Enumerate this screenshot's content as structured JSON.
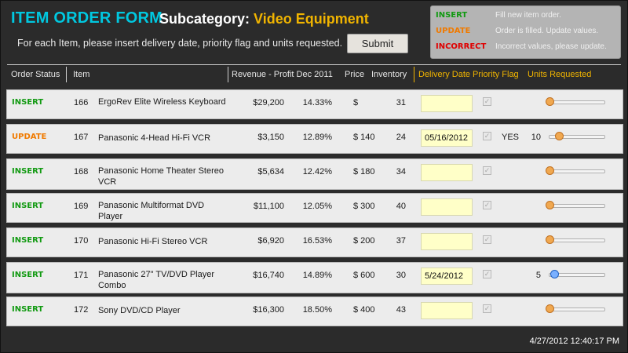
{
  "header": {
    "title": "ITEM ORDER FORM",
    "subcategory_label": "Subcategory:",
    "subcategory_value": "Video Equipment",
    "instructions": "For each Item, please insert delivery date, priority flag and units requested.",
    "submit_label": "Submit"
  },
  "legend": {
    "insert_label": "INSERT",
    "insert_desc": "Fill new item order.",
    "update_label": "UPDATE",
    "update_desc": "Order is filled. Update values.",
    "incorrect_label": "INCORRECT",
    "incorrect_desc": "Incorrect values, please update."
  },
  "columns": {
    "order_status": "Order Status",
    "item": "Item",
    "revenue": "Revenue - Profit Dec 2011",
    "price": "Price",
    "inventory": "Inventory",
    "delivery_date": "Delivery Date",
    "priority_flag": "Priority Flag",
    "units_requested": "Units Requested"
  },
  "rows": [
    {
      "status": "INSERT",
      "id": "166",
      "name": "ErgoRev Elite Wireless Keyboard",
      "revenue": "$29,200",
      "profit": "14.33%",
      "price": "$",
      "inventory": "31",
      "date": "",
      "priority": "",
      "units": ""
    },
    {
      "status": "UPDATE",
      "id": "167",
      "name": "Panasonic 4-Head Hi-Fi VCR",
      "revenue": "$3,150",
      "profit": "12.89%",
      "price": "$ 140",
      "inventory": "24",
      "date": "05/16/2012",
      "priority": "YES",
      "units": "10"
    },
    {
      "status": "INSERT",
      "id": "168",
      "name": "Panasonic Home Theater Stereo VCR",
      "revenue": "$5,634",
      "profit": "12.42%",
      "price": "$ 180",
      "inventory": "34",
      "date": "",
      "priority": "",
      "units": ""
    },
    {
      "status": "INSERT",
      "id": "169",
      "name": "Panasonic Multiformat DVD Player",
      "revenue": "$11,100",
      "profit": "12.05%",
      "price": "$ 300",
      "inventory": "40",
      "date": "",
      "priority": "",
      "units": ""
    },
    {
      "status": "INSERT",
      "id": "170",
      "name": "Panasonic Hi-Fi Stereo VCR",
      "revenue": "$6,920",
      "profit": "16.53%",
      "price": "$ 200",
      "inventory": "37",
      "date": "",
      "priority": "",
      "units": ""
    },
    {
      "status": "INSERT",
      "id": "171",
      "name": "Panasonic 27\" TV/DVD Player Combo",
      "revenue": "$16,740",
      "profit": "14.89%",
      "price": "$ 600",
      "inventory": "30",
      "date": "5/24/2012",
      "priority": "",
      "units": "5"
    },
    {
      "status": "INSERT",
      "id": "172",
      "name": "Sony DVD/CD Player",
      "revenue": "$16,300",
      "profit": "18.50%",
      "price": "$ 400",
      "inventory": "43",
      "date": "",
      "priority": "",
      "units": ""
    }
  ],
  "footer": {
    "timestamp": "4/27/2012 12:40:17 PM"
  },
  "colors": {
    "insert": "#129a12",
    "update": "#f07a00",
    "incorrect": "#e00000",
    "accent_title": "#00c8e0",
    "accent_orange": "#f0b400"
  }
}
